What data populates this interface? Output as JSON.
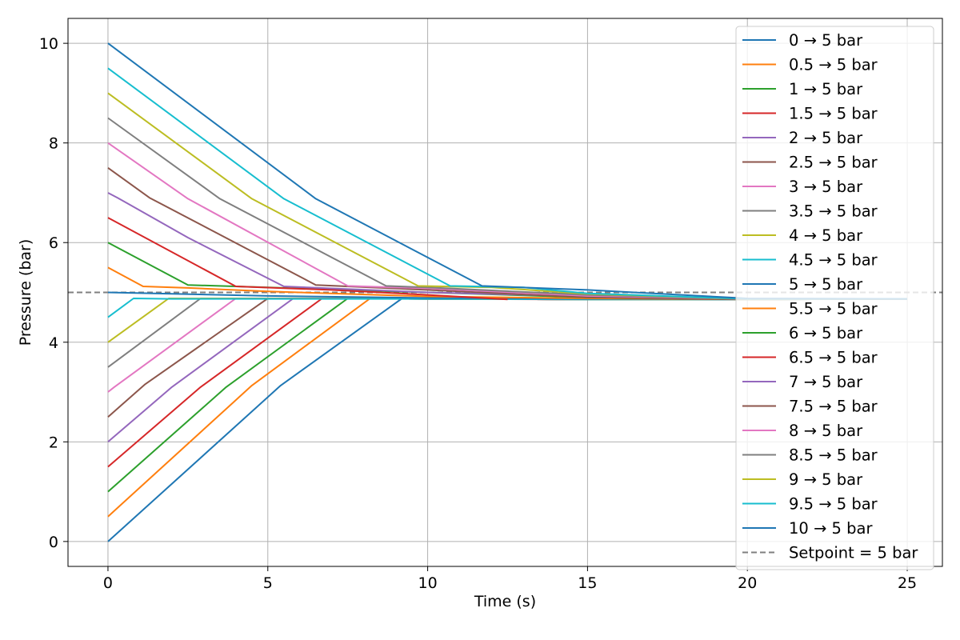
{
  "chart_data": {
    "type": "line",
    "xlabel": "Time (s)",
    "ylabel": "Pressure (bar)",
    "xlim": [
      -1.25,
      26.1
    ],
    "ylim": [
      -0.5,
      10.5
    ],
    "xticks": [
      0,
      5,
      10,
      15,
      20,
      25
    ],
    "yticks": [
      0,
      2,
      4,
      6,
      8,
      10
    ],
    "grid": true,
    "legend_position": "top-right",
    "setpoint": {
      "label": "Setpoint = 5 bar",
      "value": 5,
      "color": "#7f7f7f",
      "style": "dashed"
    },
    "series": [
      {
        "name": "0 → 5 bar",
        "color": "#1f77b4",
        "x": [
          0,
          5.4,
          9.2,
          10,
          15,
          20,
          25
        ],
        "y": [
          0,
          3.13,
          4.88,
          4.87,
          4.86,
          4.86,
          4.87
        ]
      },
      {
        "name": "0.5 → 5 bar",
        "color": "#ff7f0e",
        "x": [
          0,
          4.5,
          8.2,
          10,
          15,
          20,
          25
        ],
        "y": [
          0.5,
          3.13,
          4.88,
          4.87,
          4.86,
          4.86,
          4.87
        ]
      },
      {
        "name": "1 → 5 bar",
        "color": "#2ca02c",
        "x": [
          0,
          3.7,
          7.5,
          10,
          15,
          20,
          25
        ],
        "y": [
          1.0,
          3.1,
          4.88,
          4.87,
          4.86,
          4.86,
          4.87
        ]
      },
      {
        "name": "1.5 → 5 bar",
        "color": "#d62728",
        "x": [
          0,
          2.9,
          6.7,
          10,
          14.3
        ],
        "y": [
          1.5,
          3.1,
          4.88,
          4.87,
          4.86
        ]
      },
      {
        "name": "2 → 5 bar",
        "color": "#9467bd",
        "x": [
          0,
          2.0,
          5.8,
          10,
          15,
          20,
          25
        ],
        "y": [
          2.0,
          3.1,
          4.88,
          4.87,
          4.86,
          4.86,
          4.87
        ]
      },
      {
        "name": "2.5 → 5 bar",
        "color": "#8c564b",
        "x": [
          0,
          1.15,
          5.0,
          10,
          15,
          20,
          25
        ],
        "y": [
          2.5,
          3.15,
          4.88,
          4.87,
          4.86,
          4.86,
          4.87
        ]
      },
      {
        "name": "3 → 5 bar",
        "color": "#e377c2",
        "x": [
          0,
          0.2,
          4.0,
          10,
          15,
          20,
          25
        ],
        "y": [
          3.0,
          3.1,
          4.88,
          4.87,
          4.86,
          4.86,
          4.87
        ]
      },
      {
        "name": "3.5 → 5 bar",
        "color": "#7f7f7f",
        "x": [
          0,
          2.9,
          10,
          15,
          20,
          25
        ],
        "y": [
          3.5,
          4.88,
          4.87,
          4.86,
          4.86,
          4.87
        ]
      },
      {
        "name": "4 → 5 bar",
        "color": "#bcbd22",
        "x": [
          0,
          1.9,
          10,
          15,
          20,
          25
        ],
        "y": [
          4.0,
          4.88,
          4.87,
          4.86,
          4.86,
          4.87
        ]
      },
      {
        "name": "4.5 → 5 bar",
        "color": "#17becf",
        "x": [
          0,
          0.8,
          2.0,
          10,
          15,
          20,
          25
        ],
        "y": [
          4.5,
          4.88,
          4.87,
          4.87,
          4.86,
          4.86,
          4.87
        ]
      },
      {
        "name": "5 → 5 bar",
        "color": "#1f77b4",
        "x": [
          0,
          5,
          10,
          15,
          20,
          25
        ],
        "y": [
          5.0,
          4.93,
          4.89,
          4.87,
          4.86,
          4.87
        ]
      },
      {
        "name": "5.5 → 5 bar",
        "color": "#ff7f0e",
        "x": [
          0,
          1.1,
          2.5,
          5,
          10,
          15,
          20,
          25
        ],
        "y": [
          5.5,
          5.12,
          5.09,
          5.02,
          4.92,
          4.88,
          4.86,
          4.87
        ]
      },
      {
        "name": "6 → 5 bar",
        "color": "#2ca02c",
        "x": [
          0,
          2.5,
          5,
          10,
          15,
          20,
          25
        ],
        "y": [
          6.0,
          5.15,
          5.1,
          5.0,
          4.9,
          4.86,
          4.87
        ]
      },
      {
        "name": "6.5 → 5 bar",
        "color": "#d62728",
        "x": [
          0,
          4.0,
          7.0,
          10,
          12.5
        ],
        "y": [
          6.5,
          5.12,
          5.05,
          4.95,
          4.86
        ]
      },
      {
        "name": "7 → 5 bar",
        "color": "#9467bd",
        "x": [
          0,
          0.3,
          2.5,
          5.5,
          10,
          15,
          20,
          25
        ],
        "y": [
          7.0,
          6.9,
          6.1,
          5.12,
          5.0,
          4.92,
          4.87,
          4.87
        ]
      },
      {
        "name": "7.5 → 5 bar",
        "color": "#8c564b",
        "x": [
          0,
          1.3,
          6.5,
          10,
          15,
          20,
          25
        ],
        "y": [
          7.5,
          6.9,
          5.15,
          5.05,
          4.9,
          4.86,
          4.87
        ]
      },
      {
        "name": "8 → 5 bar",
        "color": "#e377c2",
        "x": [
          0,
          2.5,
          7.5,
          10,
          15,
          20,
          25
        ],
        "y": [
          8.0,
          6.88,
          5.13,
          5.08,
          4.93,
          4.87,
          4.87
        ]
      },
      {
        "name": "8.5 → 5 bar",
        "color": "#7f7f7f",
        "x": [
          0,
          3.5,
          8.7,
          10,
          15,
          20,
          25
        ],
        "y": [
          8.5,
          6.88,
          5.13,
          5.1,
          4.95,
          4.87,
          4.87
        ]
      },
      {
        "name": "9 → 5 bar",
        "color": "#bcbd22",
        "x": [
          0,
          4.5,
          9.7,
          12,
          15,
          20,
          25
        ],
        "y": [
          9.0,
          6.88,
          5.13,
          5.1,
          4.97,
          4.87,
          4.87
        ]
      },
      {
        "name": "9.5 → 5 bar",
        "color": "#17becf",
        "x": [
          0,
          5.5,
          10.7,
          13,
          15,
          20,
          25
        ],
        "y": [
          9.5,
          6.88,
          5.13,
          5.1,
          4.98,
          4.87,
          4.87
        ]
      },
      {
        "name": "10 → 5 bar",
        "color": "#1f77b4",
        "x": [
          0,
          6.5,
          11.7,
          15,
          20,
          25
        ],
        "y": [
          10.0,
          6.88,
          5.13,
          5.05,
          4.88,
          4.87
        ]
      }
    ]
  }
}
